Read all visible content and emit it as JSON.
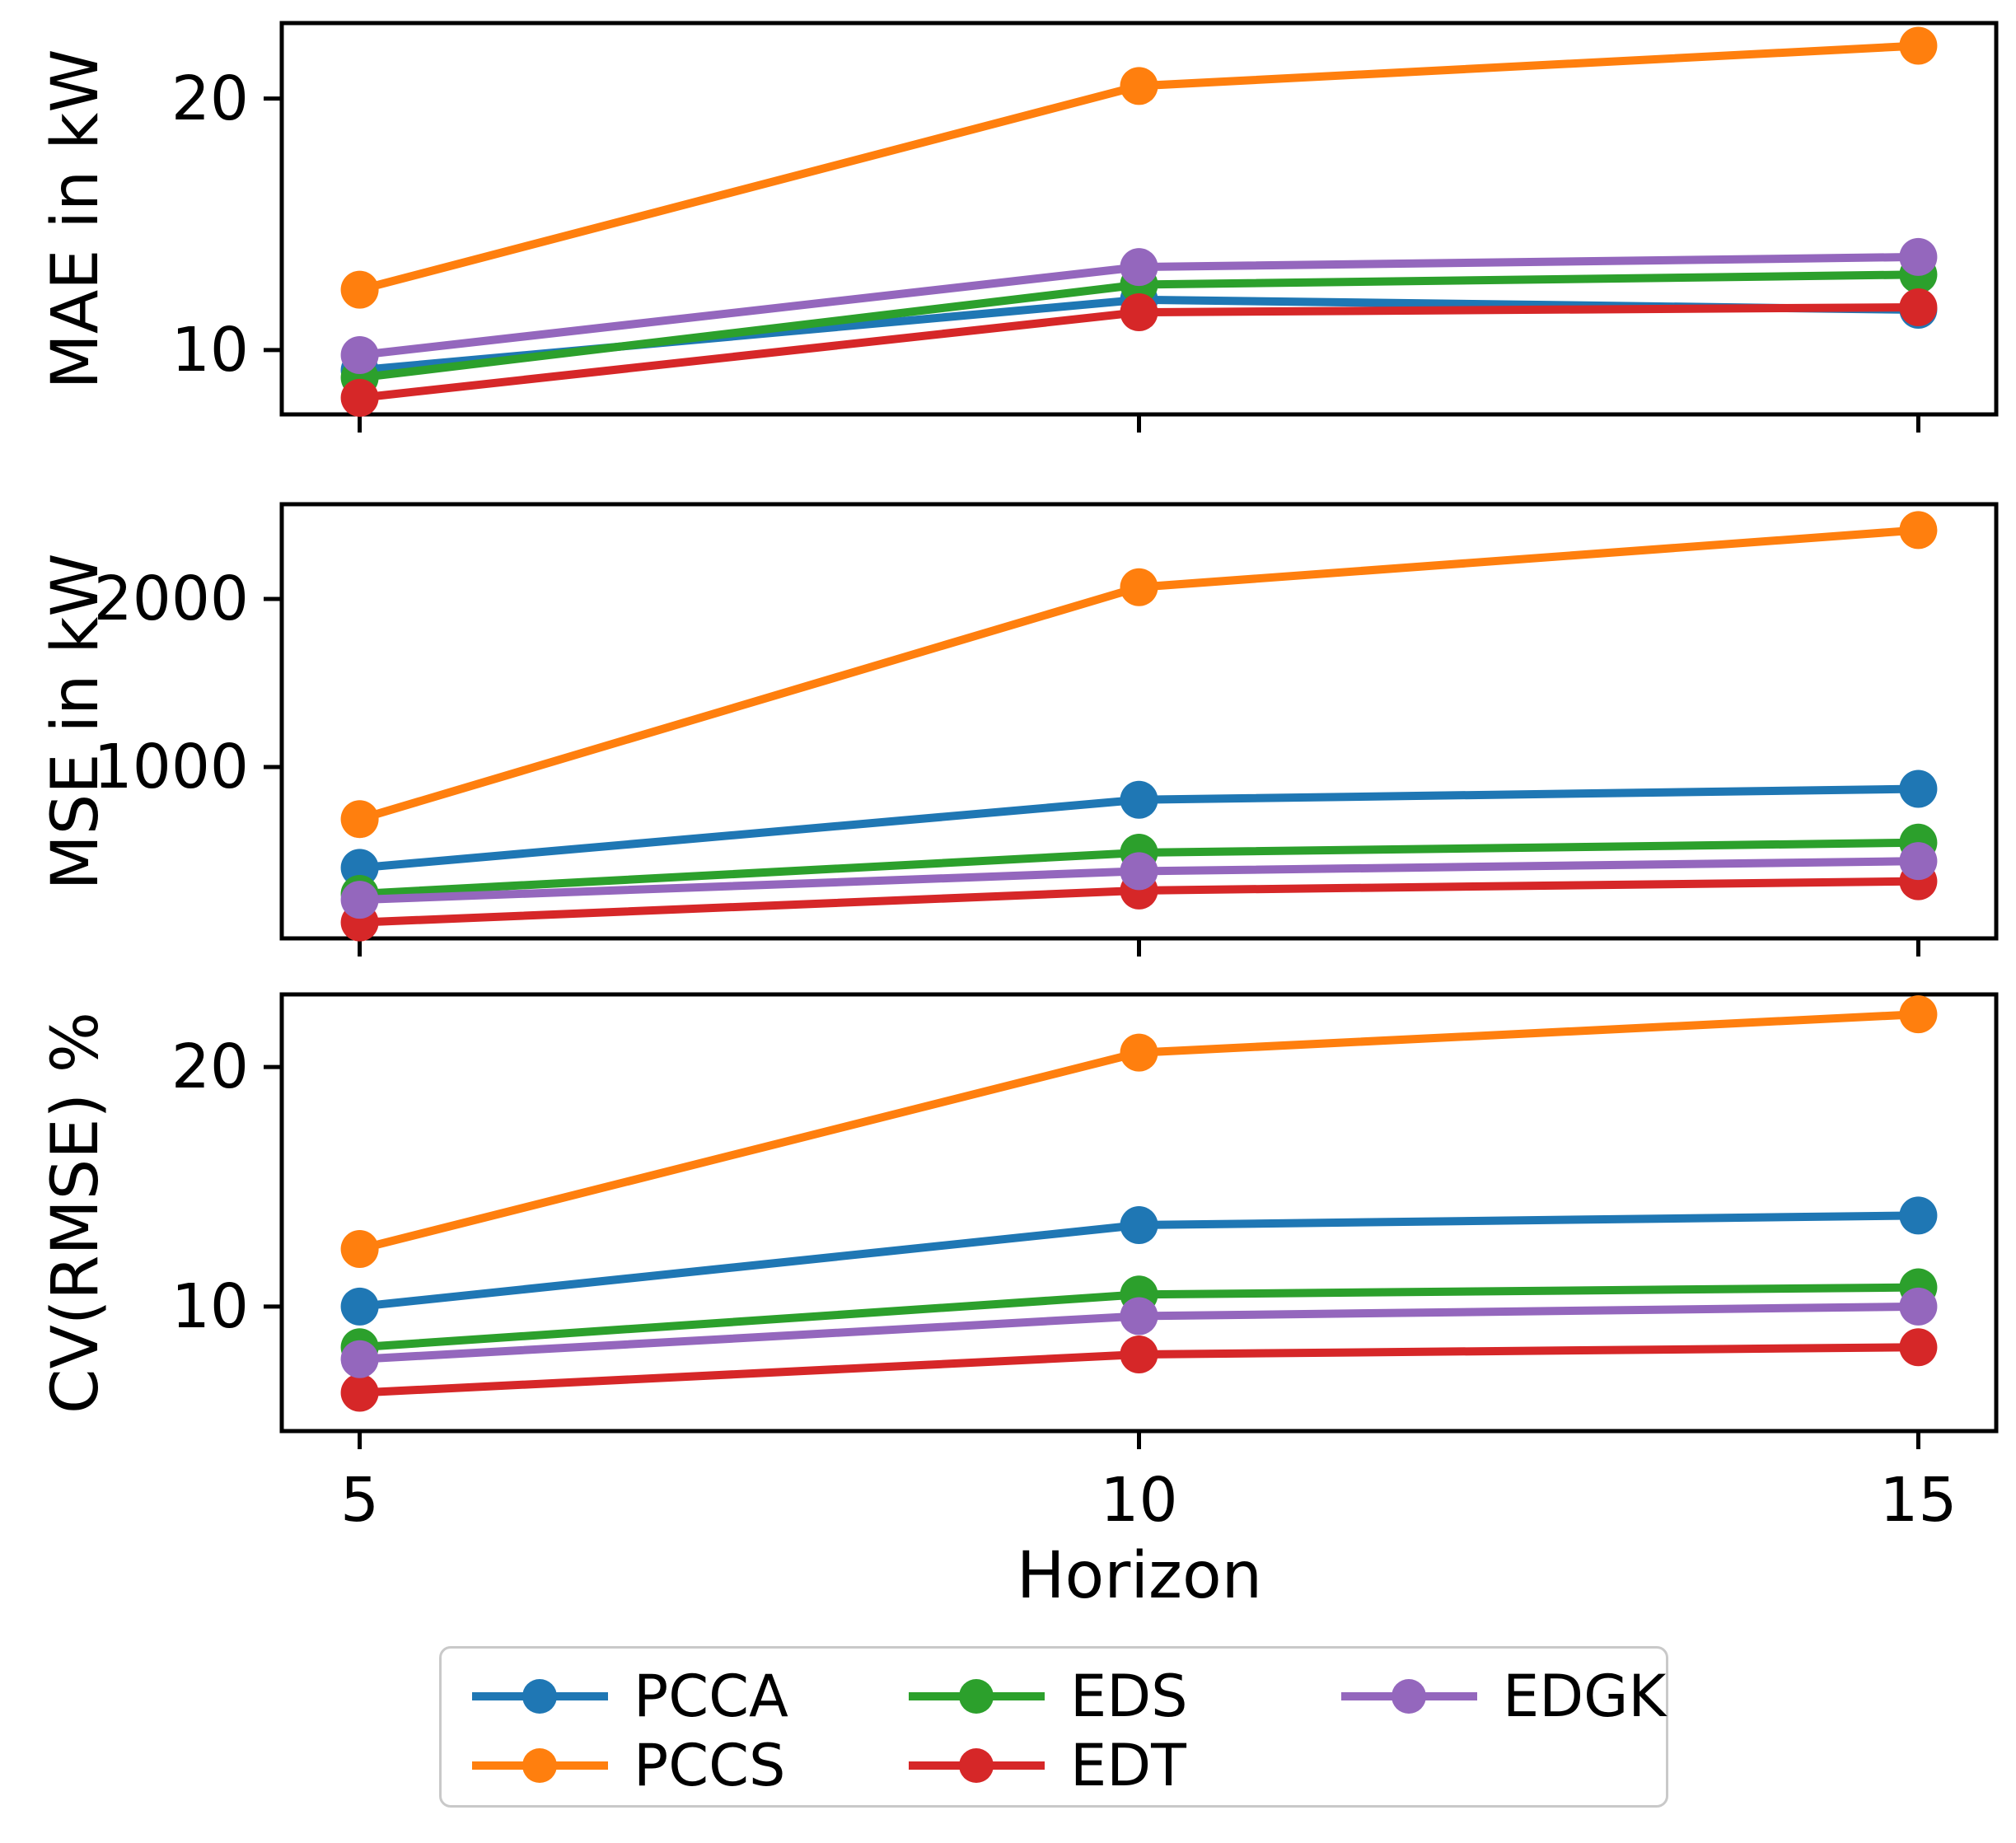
{
  "figure": {
    "background": "#ffffff"
  },
  "colors": {
    "PCCA": "#1f77b4",
    "PCCS": "#ff7f0e",
    "EDS": "#2ca02c",
    "EDT": "#d62728",
    "EDGK": "#9467bd"
  },
  "chart_data": [
    {
      "type": "line",
      "ylabel": "MAE in kW",
      "x": [
        5,
        10,
        15
      ],
      "xlim": [
        4.5,
        15.5
      ],
      "ylim": [
        7.44,
        23.0
      ],
      "yticks": [
        10,
        20
      ],
      "grid": false,
      "legend_position": "figure-bottom",
      "series": [
        {
          "name": "PCCA",
          "color": "#1f77b4",
          "values": [
            9.2,
            12.0,
            11.6
          ]
        },
        {
          "name": "PCCS",
          "color": "#ff7f0e",
          "values": [
            12.4,
            20.5,
            22.1
          ]
        },
        {
          "name": "EDS",
          "color": "#2ca02c",
          "values": [
            8.9,
            12.6,
            13.0
          ]
        },
        {
          "name": "EDT",
          "color": "#d62728",
          "values": [
            8.1,
            11.5,
            11.7
          ]
        },
        {
          "name": "EDGK",
          "color": "#9467bd",
          "values": [
            9.8,
            13.3,
            13.7
          ]
        }
      ]
    },
    {
      "type": "line",
      "ylabel": "MSE in kW",
      "x": [
        5,
        10,
        15
      ],
      "xlim": [
        4.5,
        15.5
      ],
      "ylim": [
        -20,
        2564
      ],
      "yticks": [
        1000,
        2000
      ],
      "grid": false,
      "series": [
        {
          "name": "PCCA",
          "color": "#1f77b4",
          "values": [
            400,
            805,
            870
          ]
        },
        {
          "name": "PCCS",
          "color": "#ff7f0e",
          "values": [
            690,
            2070,
            2410
          ]
        },
        {
          "name": "EDS",
          "color": "#2ca02c",
          "values": [
            245,
            490,
            550
          ]
        },
        {
          "name": "EDT",
          "color": "#d62728",
          "values": [
            75,
            265,
            320
          ]
        },
        {
          "name": "EDGK",
          "color": "#9467bd",
          "values": [
            210,
            380,
            440
          ]
        }
      ]
    },
    {
      "type": "line",
      "ylabel": "CV(RMSE) %",
      "x": [
        5,
        10,
        15
      ],
      "xlim": [
        4.5,
        15.5
      ],
      "ylim": [
        4.8,
        23.03
      ],
      "yticks": [
        10,
        20
      ],
      "grid": false,
      "series": [
        {
          "name": "PCCA",
          "color": "#1f77b4",
          "values": [
            10.0,
            13.4,
            13.8
          ]
        },
        {
          "name": "PCCS",
          "color": "#ff7f0e",
          "values": [
            12.4,
            20.6,
            22.2
          ]
        },
        {
          "name": "EDS",
          "color": "#2ca02c",
          "values": [
            8.3,
            10.5,
            10.8
          ]
        },
        {
          "name": "EDT",
          "color": "#d62728",
          "values": [
            6.4,
            8.0,
            8.3
          ]
        },
        {
          "name": "EDGK",
          "color": "#9467bd",
          "values": [
            7.8,
            9.6,
            10.0
          ]
        }
      ]
    }
  ],
  "xaxis": {
    "label": "Horizon",
    "ticks": [
      5,
      10,
      15
    ]
  },
  "legend": {
    "entries": [
      {
        "label": "PCCA",
        "color": "#1f77b4"
      },
      {
        "label": "PCCS",
        "color": "#ff7f0e"
      },
      {
        "label": "EDS",
        "color": "#2ca02c"
      },
      {
        "label": "EDT",
        "color": "#d62728"
      },
      {
        "label": "EDGK",
        "color": "#9467bd"
      }
    ]
  }
}
